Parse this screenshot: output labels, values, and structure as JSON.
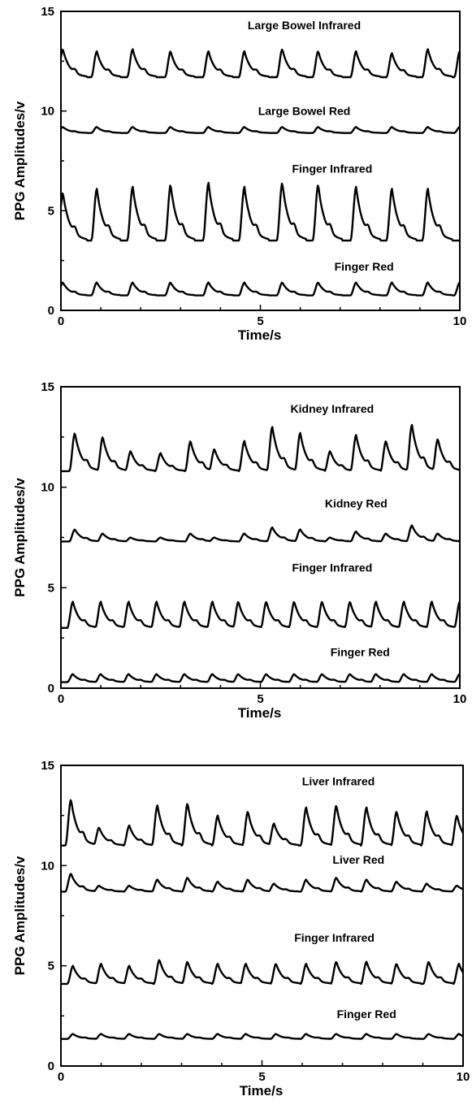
{
  "colors": {
    "background": "#ffffff",
    "ink": "#000000"
  },
  "chart_data": [
    {
      "type": "line",
      "xlabel": "Time/s",
      "ylabel": "PPG Amplitudes/v",
      "xlim": [
        0,
        10
      ],
      "ylim": [
        0,
        15
      ],
      "x_ticks": [
        "0",
        "5",
        "10"
      ],
      "y_ticks": [
        "0",
        "5",
        "10",
        "15"
      ],
      "grid": false,
      "series": [
        {
          "name": "Large Bowel Infrared",
          "label_at": [
            6.1,
            14.1
          ],
          "baseline": 11.7,
          "amplitude": 1.4,
          "peaks": [
            0.05,
            0.9,
            1.8,
            2.75,
            3.7,
            4.6,
            5.55,
            6.45,
            7.4,
            8.3,
            9.2,
            10.0
          ],
          "peak_values": [
            13.1,
            13.0,
            13.1,
            13.0,
            13.0,
            13.0,
            13.1,
            13.0,
            13.0,
            12.9,
            13.1,
            13.0
          ]
        },
        {
          "name": "Large Bowel Red",
          "label_at": [
            6.1,
            9.8
          ],
          "baseline": 8.9,
          "amplitude": 0.3,
          "peaks": [
            0.05,
            0.9,
            1.8,
            2.75,
            3.7,
            4.6,
            5.55,
            6.45,
            7.4,
            8.3,
            9.2,
            10.0
          ],
          "peak_values": [
            9.2,
            9.2,
            9.2,
            9.2,
            9.2,
            9.2,
            9.2,
            9.2,
            9.2,
            9.2,
            9.2,
            9.2
          ]
        },
        {
          "name": "Finger Infrared",
          "label_at": [
            6.8,
            6.9
          ],
          "baseline": 3.5,
          "amplitude": 2.6,
          "peaks": [
            0.05,
            0.9,
            1.8,
            2.75,
            3.7,
            4.6,
            5.55,
            6.45,
            7.4,
            8.3,
            9.2
          ],
          "peak_values": [
            5.9,
            6.1,
            6.2,
            6.3,
            6.4,
            6.2,
            6.4,
            6.3,
            6.2,
            6.1,
            6.1
          ]
        },
        {
          "name": "Finger Red",
          "label_at": [
            7.6,
            2.0
          ],
          "baseline": 0.75,
          "amplitude": 0.6,
          "peaks": [
            0.05,
            0.9,
            1.8,
            2.75,
            3.7,
            4.6,
            5.55,
            6.45,
            7.4,
            8.3,
            9.2,
            10.0
          ],
          "peak_values": [
            1.4,
            1.4,
            1.4,
            1.4,
            1.4,
            1.4,
            1.4,
            1.4,
            1.4,
            1.4,
            1.4,
            1.4
          ]
        }
      ]
    },
    {
      "type": "line",
      "xlabel": "Time/s",
      "ylabel": "PPG Amplitudes/v",
      "xlim": [
        0,
        10
      ],
      "ylim": [
        0,
        15
      ],
      "x_ticks": [
        "0",
        "5",
        "10"
      ],
      "y_ticks": [
        "0",
        "5",
        "10",
        "15"
      ],
      "grid": false,
      "series": [
        {
          "name": "Kidney Infrared",
          "label_at": [
            6.8,
            13.7
          ],
          "baseline": 10.8,
          "amplitude": 1.6,
          "peaks": [
            0.35,
            1.05,
            1.75,
            2.5,
            3.25,
            3.85,
            4.6,
            5.3,
            6.0,
            6.75,
            7.4,
            8.15,
            8.8,
            9.45
          ],
          "peak_values": [
            12.7,
            12.5,
            11.8,
            11.7,
            12.3,
            11.9,
            12.3,
            13.0,
            12.7,
            11.8,
            12.6,
            12.3,
            13.1,
            12.4
          ]
        },
        {
          "name": "Kidney Red",
          "label_at": [
            7.4,
            9.0
          ],
          "baseline": 7.3,
          "amplitude": 0.45,
          "peaks": [
            0.35,
            1.05,
            1.75,
            2.5,
            3.25,
            3.85,
            4.6,
            5.3,
            6.0,
            6.75,
            7.4,
            8.15,
            8.8,
            9.45
          ],
          "peak_values": [
            7.9,
            7.7,
            7.5,
            7.5,
            7.7,
            7.5,
            7.7,
            8.0,
            7.9,
            7.5,
            7.8,
            7.7,
            8.1,
            7.7
          ]
        },
        {
          "name": "Finger Infrared",
          "label_at": [
            6.8,
            5.8
          ],
          "baseline": 3.0,
          "amplitude": 1.3,
          "peaks": [
            0.3,
            1.0,
            1.7,
            2.4,
            3.1,
            3.8,
            4.45,
            5.15,
            5.85,
            6.55,
            7.25,
            7.9,
            8.6,
            9.3,
            10.0
          ],
          "peak_values": [
            4.3,
            4.3,
            4.3,
            4.3,
            4.3,
            4.3,
            4.3,
            4.3,
            4.3,
            4.3,
            4.3,
            4.3,
            4.3,
            4.3,
            4.3
          ]
        },
        {
          "name": "Finger Red",
          "label_at": [
            7.5,
            1.6
          ],
          "baseline": 0.3,
          "amplitude": 0.35,
          "peaks": [
            0.3,
            1.0,
            1.7,
            2.4,
            3.1,
            3.8,
            4.45,
            5.15,
            5.85,
            6.55,
            7.25,
            7.9,
            8.6,
            9.3,
            10.0
          ],
          "peak_values": [
            0.7,
            0.7,
            0.7,
            0.7,
            0.7,
            0.7,
            0.7,
            0.7,
            0.7,
            0.7,
            0.7,
            0.7,
            0.7,
            0.7,
            0.7
          ]
        }
      ]
    },
    {
      "type": "line",
      "xlabel": "Time/s",
      "ylabel": "PPG Amplitudes/v",
      "xlim": [
        0,
        10
      ],
      "ylim": [
        0,
        15
      ],
      "x_ticks": [
        "0",
        "5",
        "10"
      ],
      "y_ticks": [
        "0",
        "5",
        "10",
        "15"
      ],
      "grid": false,
      "series": [
        {
          "name": "Liver Infrared",
          "label_at": [
            6.9,
            14.0
          ],
          "baseline": 11.0,
          "amplitude": 1.6,
          "peaks": [
            0.25,
            0.95,
            1.7,
            2.4,
            3.15,
            3.9,
            4.65,
            5.3,
            6.1,
            6.85,
            7.6,
            8.35,
            9.1,
            9.85
          ],
          "peak_values": [
            13.3,
            11.9,
            12.0,
            13.0,
            13.1,
            12.5,
            12.7,
            12.1,
            12.9,
            13.0,
            12.9,
            12.7,
            12.7,
            12.5
          ]
        },
        {
          "name": "Liver Red",
          "label_at": [
            7.4,
            10.1
          ],
          "baseline": 8.7,
          "amplitude": 0.6,
          "peaks": [
            0.25,
            0.95,
            1.7,
            2.4,
            3.15,
            3.9,
            4.65,
            5.3,
            6.1,
            6.85,
            7.6,
            8.35,
            9.1,
            9.85
          ],
          "peak_values": [
            9.6,
            9.0,
            9.0,
            9.3,
            9.4,
            9.2,
            9.3,
            9.1,
            9.3,
            9.4,
            9.3,
            9.2,
            9.1,
            9.0
          ]
        },
        {
          "name": "Finger Infrared",
          "label_at": [
            6.8,
            6.2
          ],
          "baseline": 4.1,
          "amplitude": 1.1,
          "peaks": [
            0.3,
            1.0,
            1.7,
            2.45,
            3.15,
            3.9,
            4.6,
            5.35,
            6.1,
            6.85,
            7.6,
            8.35,
            9.15,
            9.9
          ],
          "peak_values": [
            5.0,
            5.1,
            5.0,
            5.3,
            5.2,
            5.1,
            5.1,
            5.1,
            5.1,
            5.2,
            5.2,
            5.1,
            5.2,
            5.1
          ]
        },
        {
          "name": "Finger Red",
          "label_at": [
            7.6,
            2.4
          ],
          "baseline": 1.35,
          "amplitude": 0.25,
          "peaks": [
            0.3,
            1.0,
            1.7,
            2.45,
            3.15,
            3.9,
            4.6,
            5.35,
            6.1,
            6.85,
            7.6,
            8.35,
            9.15,
            9.9
          ],
          "peak_values": [
            1.6,
            1.6,
            1.6,
            1.6,
            1.6,
            1.6,
            1.6,
            1.6,
            1.6,
            1.6,
            1.6,
            1.6,
            1.6,
            1.6
          ]
        }
      ]
    }
  ]
}
